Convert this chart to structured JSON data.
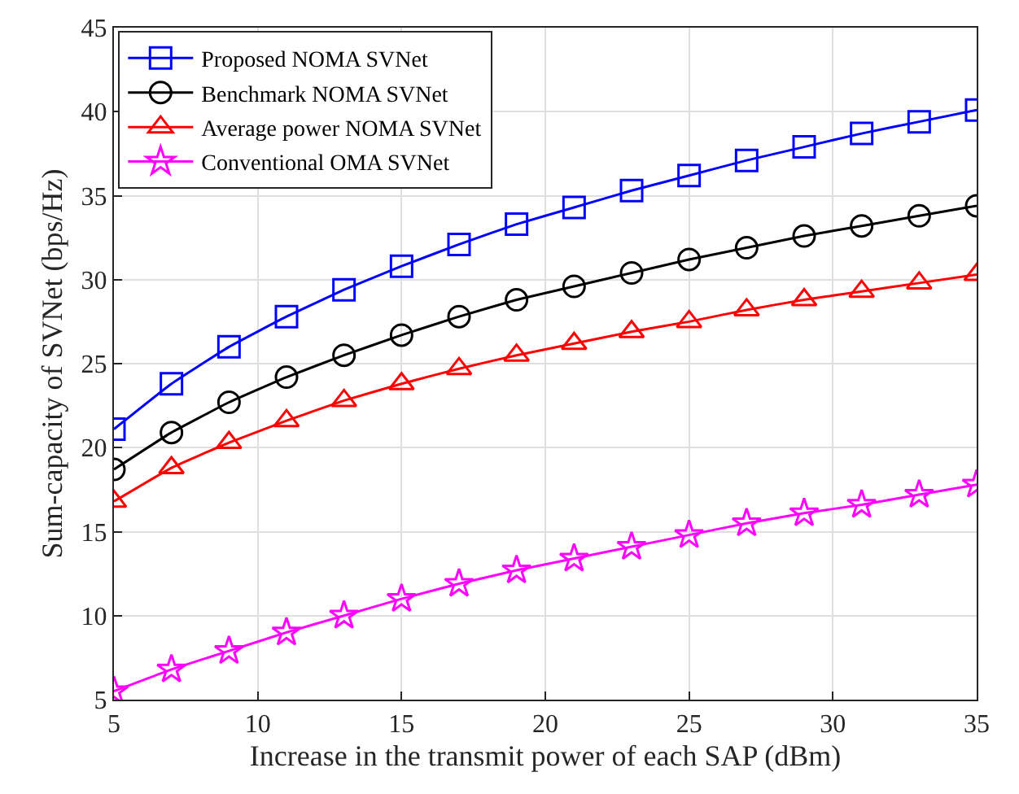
{
  "chart_data": {
    "type": "line",
    "xlabel": "Increase in the transmit power of each SAP (dBm)",
    "ylabel": "Sum-capacity of SVNet (bps/Hz)",
    "x": [
      5,
      7,
      9,
      11,
      13,
      15,
      17,
      19,
      21,
      23,
      25,
      27,
      29,
      31,
      33,
      35
    ],
    "xlim": [
      5,
      35
    ],
    "xticks": [
      5,
      10,
      15,
      20,
      25,
      30,
      35
    ],
    "ylim": [
      5,
      45
    ],
    "yticks": [
      5,
      10,
      15,
      20,
      25,
      30,
      35,
      40,
      45
    ],
    "grid": true,
    "legend": "top left",
    "line_style": "solid",
    "series": [
      {
        "name": "Proposed NOMA SVNet",
        "color": "#0000ff",
        "marker": "square",
        "values": [
          21.1,
          23.8,
          26.0,
          27.8,
          29.4,
          30.8,
          32.1,
          33.3,
          34.3,
          35.3,
          36.2,
          37.1,
          37.9,
          38.7,
          39.4,
          40.1
        ]
      },
      {
        "name": "Benchmark NOMA SVNet",
        "color": "#000000",
        "marker": "circle",
        "values": [
          18.7,
          20.9,
          22.7,
          24.2,
          25.5,
          26.7,
          27.8,
          28.8,
          29.6,
          30.4,
          31.2,
          31.9,
          32.6,
          33.2,
          33.8,
          34.4
        ]
      },
      {
        "name": "Average power NOMA SVNet",
        "color": "#ff0000",
        "marker": "triangle",
        "values": [
          16.8,
          18.8,
          20.3,
          21.6,
          22.8,
          23.8,
          24.7,
          25.5,
          26.2,
          26.9,
          27.5,
          28.2,
          28.8,
          29.3,
          29.8,
          30.3
        ]
      },
      {
        "name": "Conventional OMA SVNet",
        "color": "#ff00ff",
        "marker": "star",
        "values": [
          5.5,
          6.8,
          7.9,
          9.0,
          10.0,
          11.0,
          11.9,
          12.7,
          13.4,
          14.1,
          14.8,
          15.5,
          16.1,
          16.6,
          17.2,
          17.8
        ]
      }
    ]
  }
}
